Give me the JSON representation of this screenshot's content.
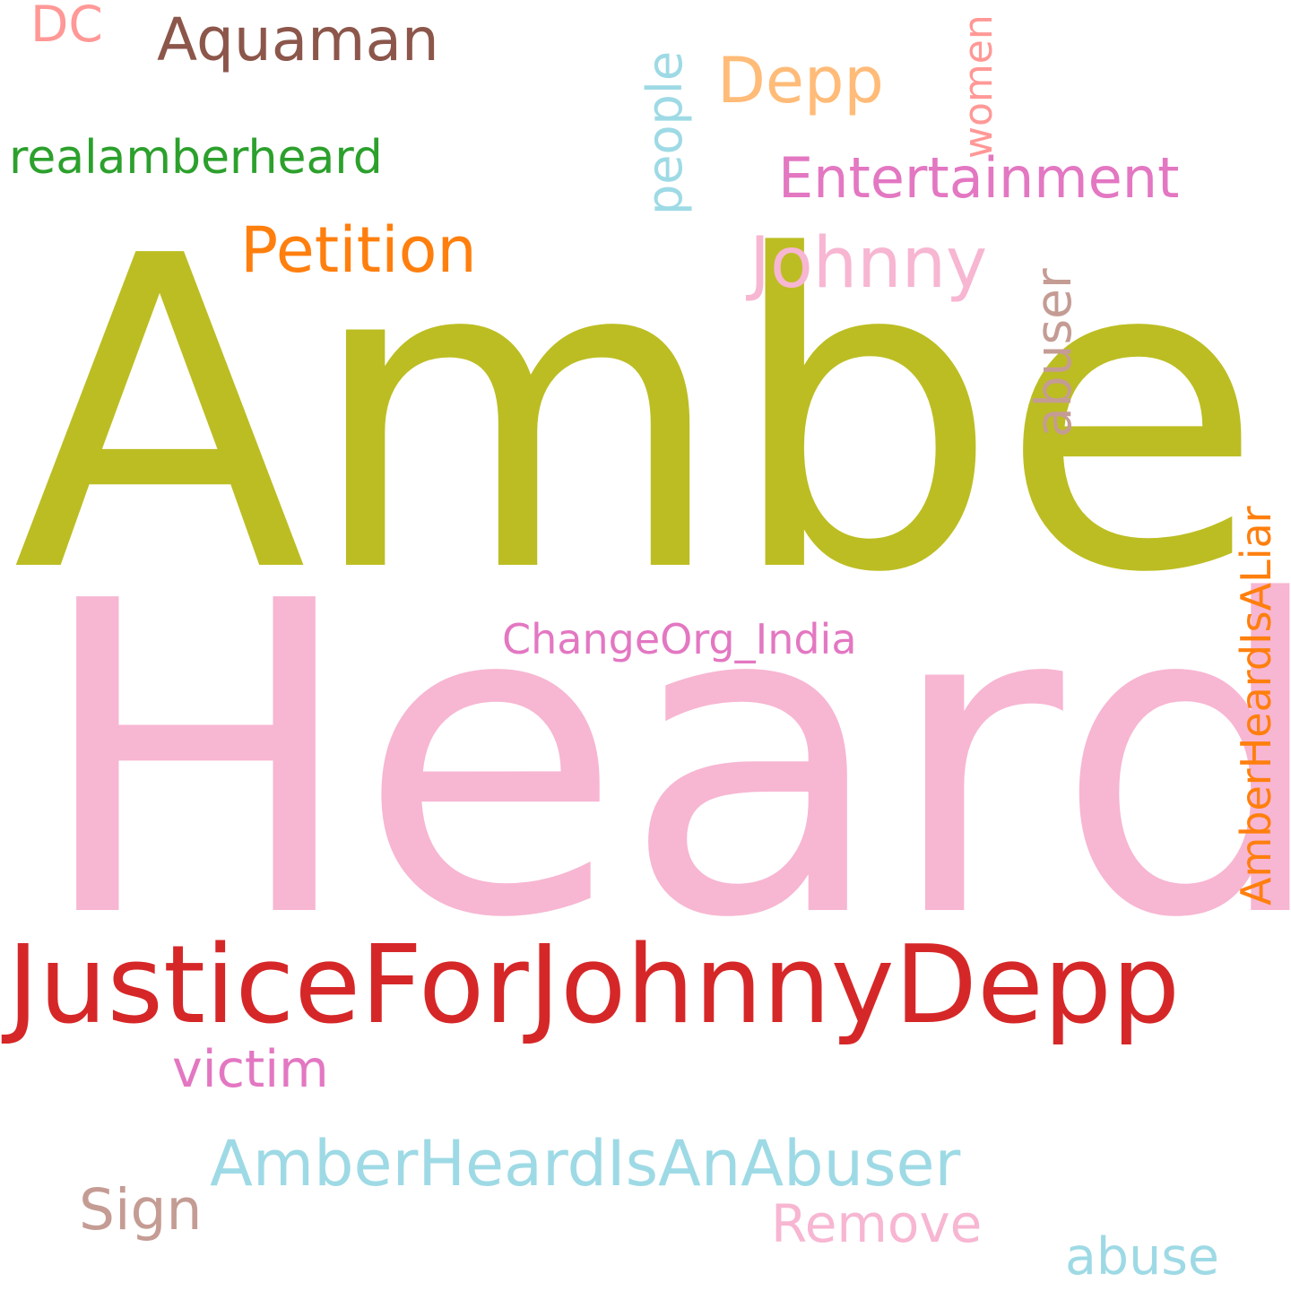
{
  "words": [
    {
      "key": "amber",
      "text": "Amber",
      "color": "#bcbd22",
      "orientation": "horizontal"
    },
    {
      "key": "heard",
      "text": "Heard",
      "color": "#f7b6d2",
      "orientation": "horizontal"
    },
    {
      "key": "justice",
      "text": "JusticeForJohnnyDepp",
      "color": "#d62728",
      "orientation": "horizontal"
    },
    {
      "key": "aquaman",
      "text": "Aquaman",
      "color": "#8c564b",
      "orientation": "horizontal"
    },
    {
      "key": "dc",
      "text": "DC",
      "color": "#ff9896",
      "orientation": "horizontal"
    },
    {
      "key": "realamberheard",
      "text": "realamberheard",
      "color": "#2ca02c",
      "orientation": "horizontal"
    },
    {
      "key": "people",
      "text": "people",
      "color": "#9edae5",
      "orientation": "vertical"
    },
    {
      "key": "depp",
      "text": "Depp",
      "color": "#ffbb78",
      "orientation": "horizontal"
    },
    {
      "key": "women",
      "text": "women",
      "color": "#ff9896",
      "orientation": "vertical"
    },
    {
      "key": "entertainment",
      "text": "Entertainment",
      "color": "#e377c2",
      "orientation": "horizontal"
    },
    {
      "key": "petition",
      "text": "Petition",
      "color": "#ff7f0e",
      "orientation": "horizontal"
    },
    {
      "key": "johnny",
      "text": "Johnny",
      "color": "#f7b6d2",
      "orientation": "horizontal"
    },
    {
      "key": "abuser",
      "text": "abuser",
      "color": "#c49c94",
      "orientation": "vertical"
    },
    {
      "key": "amberheardisaliar",
      "text": "AmberHeardIsALiar",
      "color": "#ff7f0e",
      "orientation": "vertical"
    },
    {
      "key": "changeorg",
      "text": "ChangeOrg_India",
      "color": "#e377c2",
      "orientation": "horizontal"
    },
    {
      "key": "victim",
      "text": "victim",
      "color": "#e377c2",
      "orientation": "horizontal"
    },
    {
      "key": "amberheardisanabuser",
      "text": "AmberHeardIsAnAbuser",
      "color": "#9edae5",
      "orientation": "horizontal"
    },
    {
      "key": "sign",
      "text": "Sign",
      "color": "#c49c94",
      "orientation": "horizontal"
    },
    {
      "key": "remove",
      "text": "Remove",
      "color": "#f7b6d2",
      "orientation": "horizontal"
    },
    {
      "key": "abuse",
      "text": "abuse",
      "color": "#9edae5",
      "orientation": "horizontal"
    }
  ]
}
